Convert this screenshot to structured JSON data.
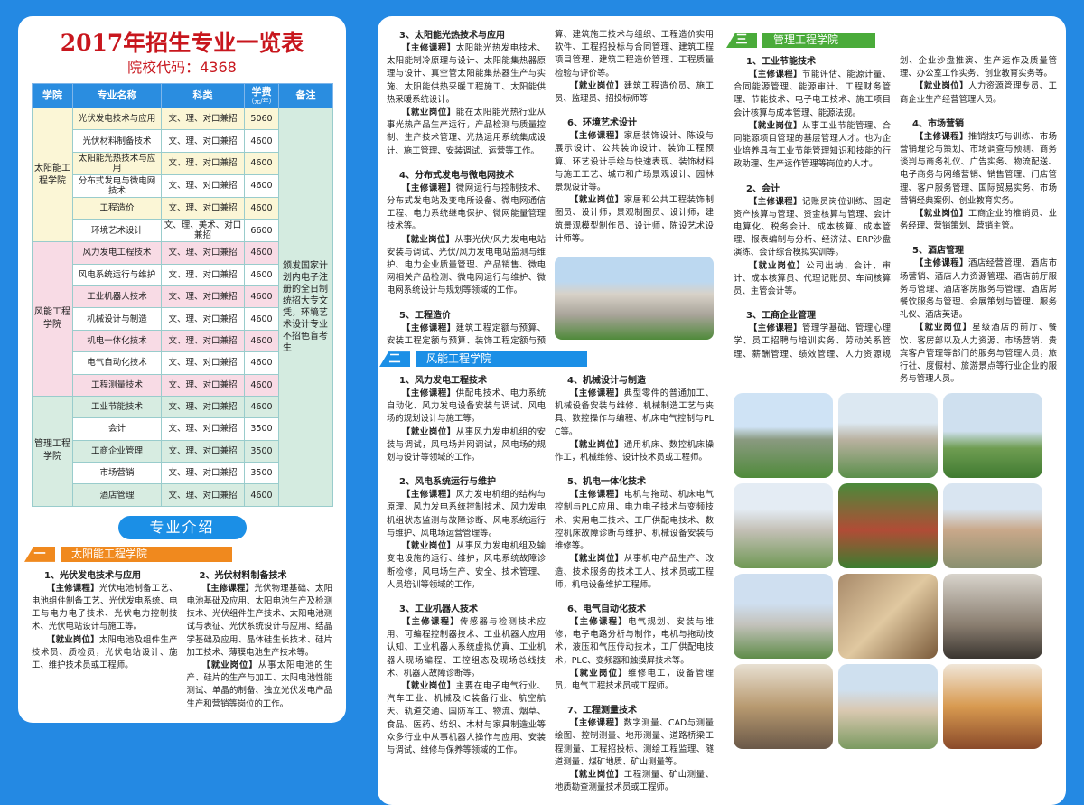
{
  "header": {
    "title": "2017年招生专业一览表",
    "school_code": "院校代码：4368"
  },
  "table": {
    "columns": [
      "学院",
      "专业名称",
      "科类",
      "学费",
      "（元/年）",
      "备注"
    ],
    "note": "颁发国家计划内电子注册的全日制统招大专文凭，环境艺术设计专业不招色盲考生",
    "groups": [
      {
        "college": "太阳能工程学院",
        "rows": [
          [
            "光伏发电技术与应用",
            "文、理、对口兼招",
            "5060"
          ],
          [
            "光伏材料制备技术",
            "文、理、对口兼招",
            "4600"
          ],
          [
            "太阳能光热技术与应用",
            "文、理、对口兼招",
            "4600"
          ],
          [
            "分布式发电与微电网技术",
            "文、理、对口兼招",
            "4600"
          ],
          [
            "工程造价",
            "文、理、对口兼招",
            "4600"
          ],
          [
            "环境艺术设计",
            "文、理、美术、对口兼招",
            "6600"
          ]
        ]
      },
      {
        "college": "风能工程学院",
        "rows": [
          [
            "风力发电工程技术",
            "文、理、对口兼招",
            "4600"
          ],
          [
            "风电系统运行与维护",
            "文、理、对口兼招",
            "4600"
          ],
          [
            "工业机器人技术",
            "文、理、对口兼招",
            "4600"
          ],
          [
            "机械设计与制造",
            "文、理、对口兼招",
            "4600"
          ],
          [
            "机电一体化技术",
            "文、理、对口兼招",
            "4600"
          ],
          [
            "电气自动化技术",
            "文、理、对口兼招",
            "4600"
          ],
          [
            "工程测量技术",
            "文、理、对口兼招",
            "4600"
          ]
        ]
      },
      {
        "college": "管理工程学院",
        "rows": [
          [
            "工业节能技术",
            "文、理、对口兼招",
            "4600"
          ],
          [
            "会计",
            "文、理、对口兼招",
            "3500"
          ],
          [
            "工商企业管理",
            "文、理、对口兼招",
            "3500"
          ],
          [
            "市场营销",
            "文、理、对口兼招",
            "3500"
          ],
          [
            "酒店管理",
            "文、理、对口兼招",
            "4600"
          ]
        ]
      }
    ]
  },
  "intro_label": "专业介绍",
  "labels": {
    "courses": "【主修课程】",
    "jobs": "【就业岗位】"
  },
  "colors": {
    "background": "#2489e3",
    "solar": "#f0891e",
    "wind": "#1b8fe6",
    "management": "#4aab3a",
    "title": "#c8161d"
  },
  "sections": [
    {
      "num": "一",
      "name": "太阳能工程学院",
      "items": [
        {
          "title": "1、光伏发电技术与应用",
          "courses": "光伏电池制备工艺、电池组件制备工艺、光伏发电系统、电工与电力电子技术、光伏电力控制技术、光伏电站设计与施工等。",
          "jobs": "太阳电池及组件生产技术员、质检员，光伏电站设计、施工、维护技术员或工程师。"
        },
        {
          "title": "2、光伏材料制备技术",
          "courses": "光伏物理基础、太阳电池基础及应用、太阳电池生产及检测技术、光伏组件生产技术、太阳电池测试与表征、光伏系统设计与应用、结晶学基础及应用、晶体硅生长技术、硅片加工技术、薄膜电池生产技术等。",
          "jobs": "从事太阳电池的生产、硅片的生产与加工、太阳电池性能测试、单晶的制备、独立光伏发电产品生产和营销等岗位的工作。"
        },
        {
          "title": "3、太阳能光热技术与应用",
          "courses": "太阳能光热发电技术、太阳能制冷原理与设计、太阳能集热器原理与设计、真空管太阳能集热器生产与实施、太阳能供热采暖工程施工、太阳能供热采暖系统设计。",
          "jobs": "能在太阳能光热行业从事光热产品生产运行，产品检测与质量控制、生产技术管理、光热运用系统集成设计、施工管理、安装调试、运营等工作。"
        },
        {
          "title": "4、分布式发电与微电网技术",
          "courses": "微网运行与控制技术、分布式发电站及变电所设备、微电网通信工程、电力系统继电保护、微网能量管理技术等。",
          "jobs": "从事光伏/风力发电电站安装与调试、光伏/风力发电电站监测与维护、电力企业质量管理、产品销售、微电网相关产品检测、微电网运行与维护、微电网系统设计与规划等领域的工作。"
        },
        {
          "title": "5、工程造价",
          "courses": "建筑工程定额与预算、安装工程定额与预算、装饰工程定额与预算、建筑施工技术与组织、工程造价实用软件、工程招投标与合同管理、建筑工程项目管理、建筑工程造价管理、工程质量检验与评价等。",
          "jobs": "建筑工程造价员、施工员、监理员、招投标师等"
        },
        {
          "title": "6、环境艺术设计",
          "courses": "家居装饰设计、陈设与展示设计、公共装饰设计、装饰工程预算、环艺设计手绘与快速表现、装饰材料与施工工艺、城市和广场景观设计、园林景观设计等。",
          "jobs": "家居和公共工程装饰制图员、设计师，景观制图员、设计师，建筑景观模型制作员、设计师，陈设艺术设计师等。"
        }
      ]
    },
    {
      "num": "二",
      "name": "风能工程学院",
      "items": [
        {
          "title": "1、风力发电工程技术",
          "courses": "供配电技术、电力系统自动化、风力发电设备安装与调试、风电场的规划设计与施工等。",
          "jobs": "从事风力发电机组的安装与调试，风电场并网调试，风电场的规划与设计等领域的工作。"
        },
        {
          "title": "2、风电系统运行与维护",
          "courses": "风力发电机组的结构与原理、风力发电系统控制技术、风力发电机组状态监测与故障诊断、风电系统运行与维护、风电场运营管理等。",
          "jobs": "从事风力发电机组及输变电设施的运行、维护，风电系统故障诊断检修，风电场生产、安全、技术管理、人员培训等领域的工作。"
        },
        {
          "title": "3、工业机器人技术",
          "courses": "传感器与检测技术应用、可编程控制器技术、工业机器人应用认知、工业机器人系统虚拟仿真、工业机器人现场编程、工控组态及现场总线技术、机器人故障诊断等。",
          "jobs": "主要在电子电气行业、汽车工业、机械及IC装备行业、航空航天、轨道交通、国防军工、物流、烟草、食品、医药、纺织、木材与家具制造业等众多行业中从事机器人操作与应用、安装与调试、维修与保养等领域的工作。"
        },
        {
          "title": "4、机械设计与制造",
          "courses": "典型零件的普通加工、机械设备安装与维修、机械制造工艺与夹具、数控操作与编程、机床电气控制与PLC等。",
          "jobs": "通用机床、数控机床操作工，机械维修、设计技术员或工程师。"
        },
        {
          "title": "5、机电一体化技术",
          "courses": "电机与拖动、机床电气控制与PLC应用、电力电子技术与变频技术、实用电工技术、工厂供配电技术、数控机床故障诊断与维护、机械设备安装与维修等。",
          "jobs": "从事机电产品生产、改造、技术服务的技术工人、技术员或工程师，机电设备维护工程师。"
        },
        {
          "title": "6、电气自动化技术",
          "courses": "电气规划、安装与维修，电子电路分析与制作，电机与拖动技术，液压和气压传动技术，工厂供配电技术，PLC、变频器和触摸屏技术等。",
          "jobs": "维修电工，设备管理员，电气工程技术员或工程师。"
        },
        {
          "title": "7、工程测量技术",
          "courses": "数字测量、CAD与测量绘图、控制测量、地形测量、道路桥梁工程测量、工程招投标、测绘工程监理、隧道测量、煤矿地质、矿山测量等。",
          "jobs": "工程测量、矿山测量、地质勘查测量技术员或工程师。"
        }
      ]
    },
    {
      "num": "三",
      "name": "管理工程学院",
      "items": [
        {
          "title": "1、工业节能技术",
          "courses": "节能评估、能源计量、合同能源管理、能源审计、工程财务管理、节能技术、电子电工技术、施工项目会计核算与成本管理、能源法规。",
          "jobs": "从事工业节能管理、合同能源项目管理的基层管理人才。也为企业培养具有工业节能管理知识和技能的行政助理、生产运作管理等岗位的人才。"
        },
        {
          "title": "2、会计",
          "courses": "记账员岗位训练、固定资产核算与管理、资金核算与管理、会计电算化、税务会计、成本核算、成本管理、报表编制与分析、经济法、ERP沙盘演练、会计综合模拟实训等。",
          "jobs": "公司出纳、会计、审计、成本核算员、代理记账员、车间核算员、主管会计等。"
        },
        {
          "title": "3、工商企业管理",
          "courses": "管理学基础、管理心理学、员工招聘与培训实务、劳动关系管理、薪酬管理、绩效管理、人力资源规划、企业沙盘推演、生产运作及质量管理、办公室工作实务、创业教育实务等。",
          "jobs": "人力资源管理专员、工商企业生产经营管理人员。"
        },
        {
          "title": "4、市场营销",
          "courses": "推销技巧与训练、市场营销理论与策划、市场调查与预测、商务谈判与商务礼仪、广告实务、物流配送、电子商务与网络营销、销售管理、门店管理、客户服务管理、国际贸易实务、市场营销经典案例、创业教育实务。",
          "jobs": "工商企业的推销员、业务经理、营销策划、营销主管。"
        },
        {
          "title": "5、酒店管理",
          "courses": "酒店经营管理、酒店市场营销、酒店人力资源管理、酒店前厅服务与管理、酒店客房服务与管理、酒店房餐饮服务与管理、会展策划与管理、服务礼仪、酒店英语。",
          "jobs": "星级酒店的前厅、餐饮、客房部以及人力资源、市场营销、贵宾客户管理等部门的服务与管理人员，旅行社、度假村、旅游景点等行业企业的服务与管理人员。"
        }
      ]
    }
  ]
}
